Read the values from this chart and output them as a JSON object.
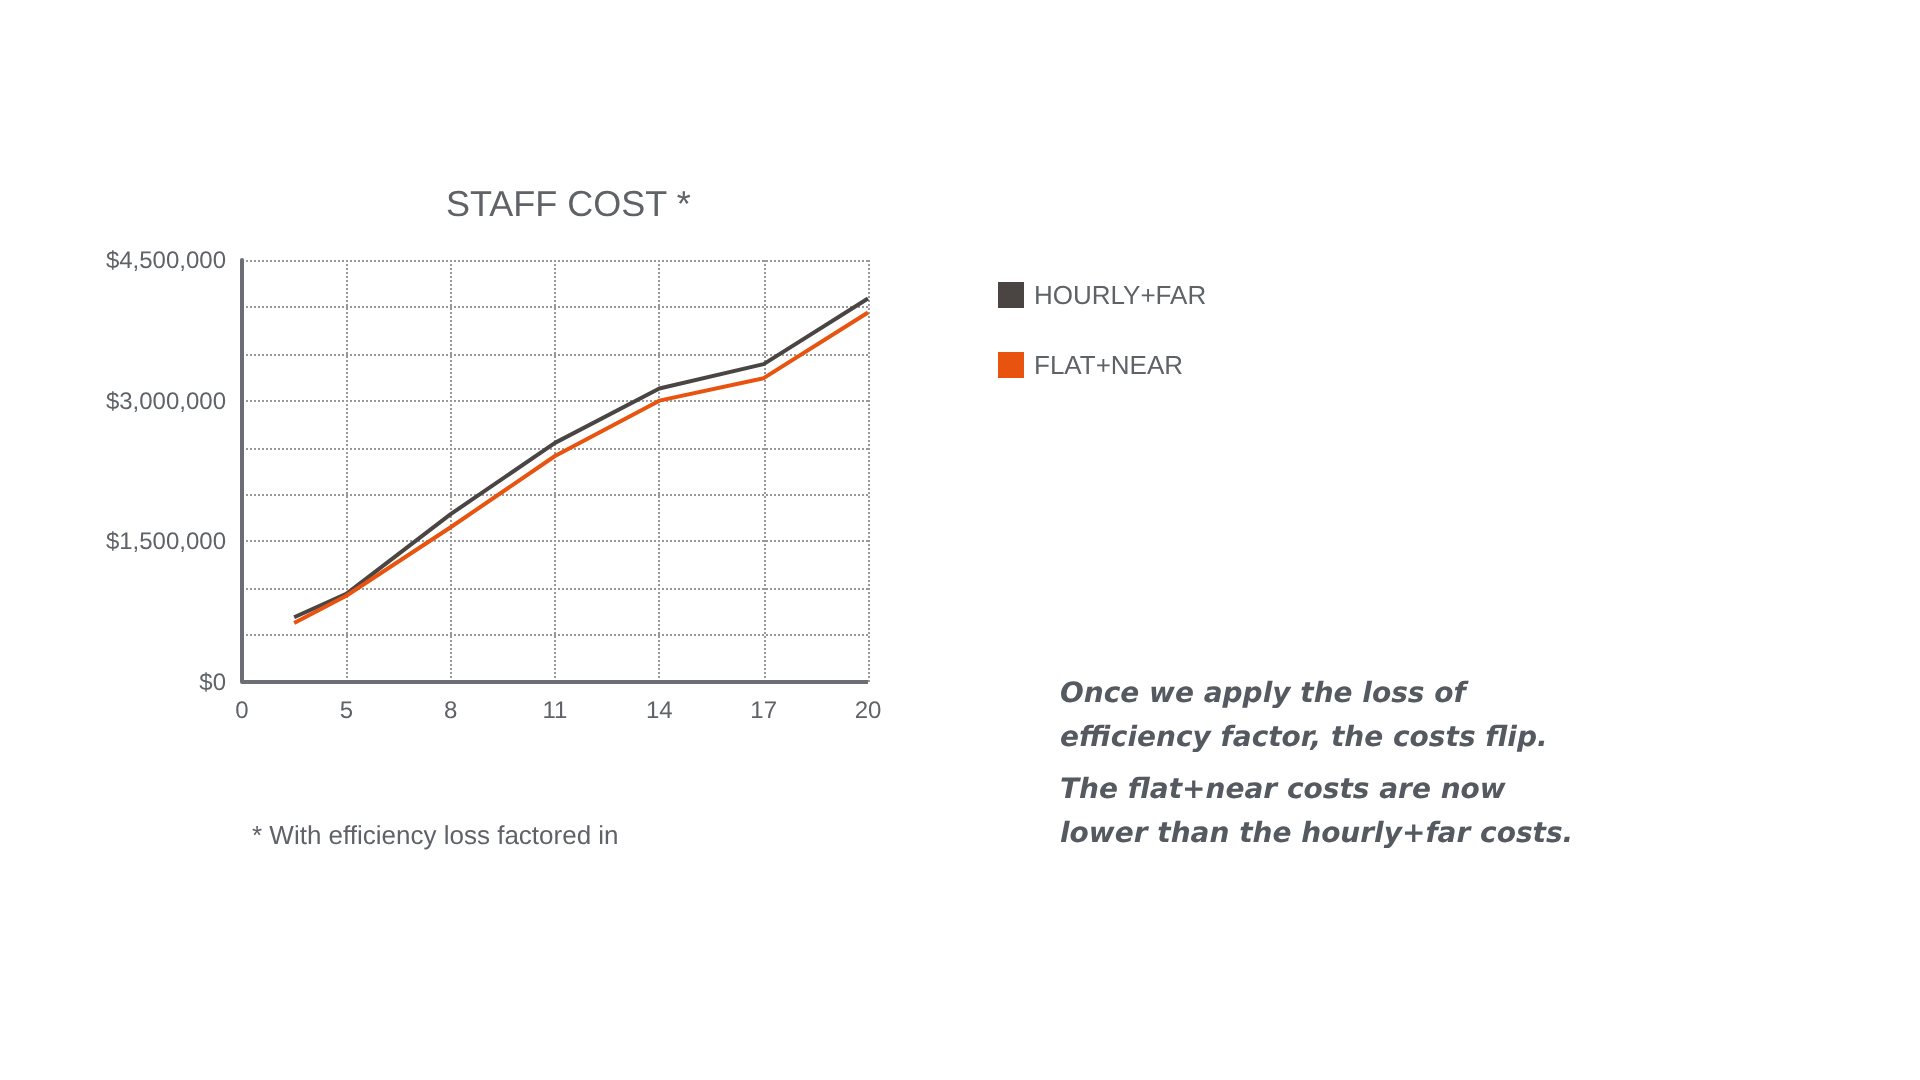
{
  "chart_data": {
    "type": "line",
    "title": "STAFF COST *",
    "categories": [
      "0",
      null,
      "5",
      null,
      "8",
      null,
      "11",
      null,
      "14",
      null,
      "17",
      null,
      "20"
    ],
    "series": [
      {
        "name": "HOURLY+FAR",
        "color": "#4a4543",
        "values": [
          null,
          690000,
          940000,
          null,
          1790000,
          null,
          2550000,
          null,
          3130000,
          null,
          3390000,
          null,
          4090000
        ]
      },
      {
        "name": "FLAT+NEAR",
        "color": "#e8540f",
        "values": [
          null,
          630000,
          920000,
          null,
          1650000,
          null,
          2410000,
          null,
          3000000,
          null,
          3240000,
          null,
          3940000
        ]
      }
    ],
    "ylim": [
      0,
      4500000
    ],
    "yticks": [
      {
        "value": 0,
        "label": "$0"
      },
      {
        "value": 500000,
        "label": null
      },
      {
        "value": 1000000,
        "label": null
      },
      {
        "value": 1500000,
        "label": "$1,500,000"
      },
      {
        "value": 2000000,
        "label": null
      },
      {
        "value": 2500000,
        "label": null
      },
      {
        "value": 3000000,
        "label": "$3,000,000"
      },
      {
        "value": 3500000,
        "label": null
      },
      {
        "value": 4000000,
        "label": null
      },
      {
        "value": 4500000,
        "label": "$4,500,000"
      }
    ],
    "grid": true,
    "legend": "right",
    "marker": "none",
    "line_style": "solid",
    "annotations": [
      "* With efficiency loss factored in",
      "Once we apply the loss of\nefficiency factor, the costs flip.",
      "The flat+near costs are now\nlower than the hourly+far costs."
    ]
  }
}
